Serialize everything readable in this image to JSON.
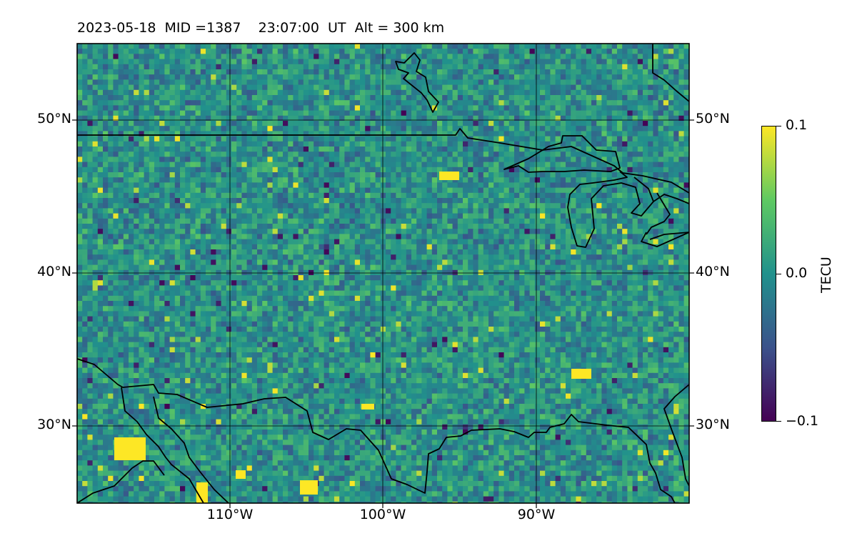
{
  "title": "2023-05-18  MID =1387    23:07:00  UT  Alt = 300 km",
  "map": {
    "lat_labels": [
      "50°N",
      "40°N",
      "30°N"
    ],
    "lon_labels": [
      "110°W",
      "100°W",
      "90°W"
    ],
    "lat_range": [
      25,
      55
    ],
    "lon_range": [
      -120,
      -80
    ],
    "field": "Total Electron Content perturbation (TEC map)",
    "grid": true
  },
  "colorbar": {
    "label": "TECU",
    "ticks": [
      "0.1",
      "0.0",
      "−0.1"
    ],
    "colormap": "viridis",
    "range": [
      -0.1,
      0.1
    ],
    "colors": [
      "#440154",
      "#3b528b",
      "#21918c",
      "#5ec962",
      "#fde725"
    ]
  }
}
